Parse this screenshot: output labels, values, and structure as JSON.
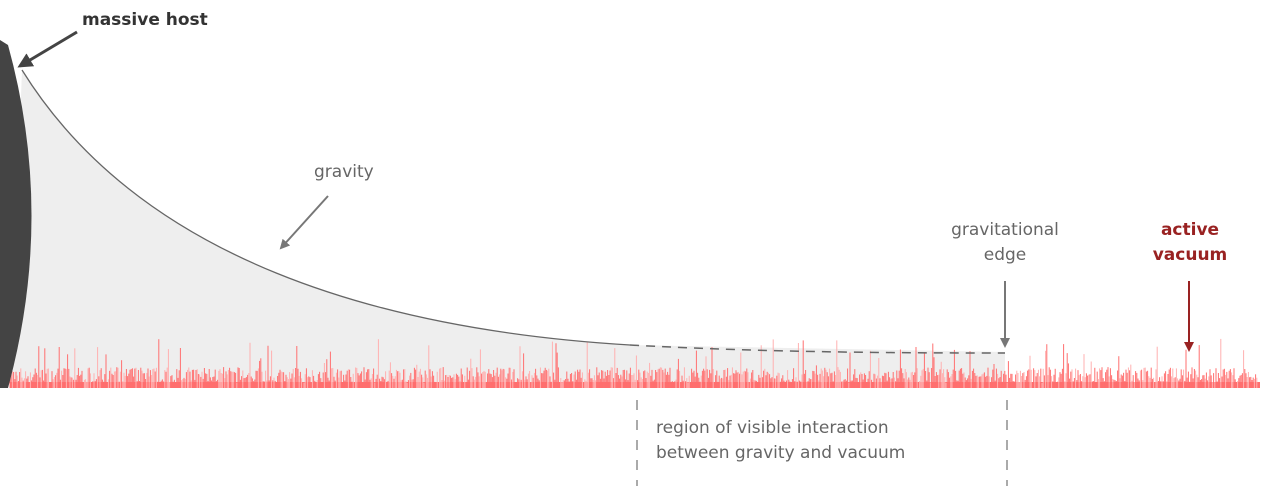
{
  "labels": {
    "massive_host": "massive host",
    "gravity": "gravity",
    "gravitational_edge_line1": "gravitational",
    "gravitational_edge_line2": "edge",
    "active_vacuum_line1": "active",
    "active_vacuum_line2": "vacuum",
    "region_line1": "region of visible interaction",
    "region_line2": "between gravity and vacuum"
  },
  "colors": {
    "host": "#444444",
    "curve": "#666666",
    "gravity_fill": "#eeeeee",
    "vacuum_noise": "#ff6f6f",
    "vacuum_noise_light": "#ffb0b0",
    "accent_red": "#992222",
    "arrow_gray": "#777777",
    "dashed": "#aaaaaa"
  }
}
